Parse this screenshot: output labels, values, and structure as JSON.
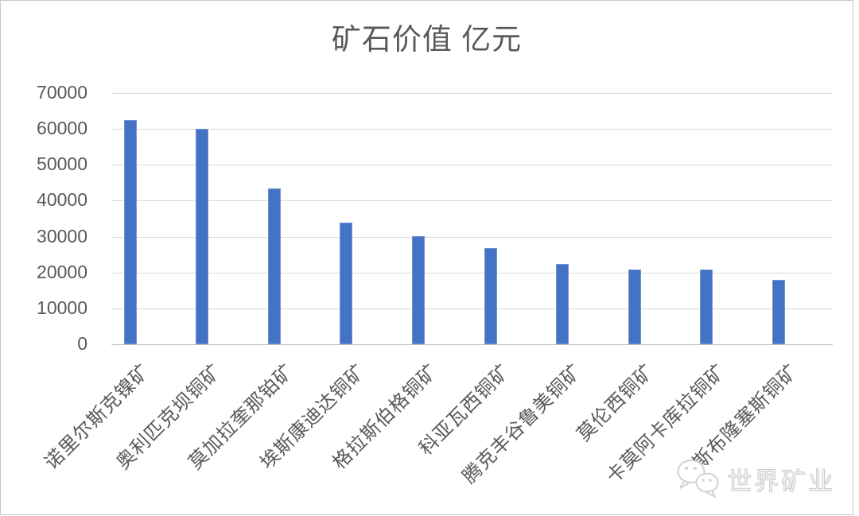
{
  "page": {
    "background": "#ffffff",
    "border_color": "#c9c9c9"
  },
  "chart_data": {
    "type": "bar",
    "title": "矿石价值 亿元",
    "categories": [
      "诺里尔斯克镍矿",
      "奥利匹克坝铜矿",
      "莫加拉奎那铂矿",
      "埃斯康迪达铜矿",
      "格拉斯伯格铜矿",
      "科亚瓦西铜矿",
      "腾克丰谷鲁美铜矿",
      "莫伦西铜矿",
      "卡莫阿卡库拉铜矿",
      "洛斯布隆塞斯铜矿"
    ],
    "values": [
      62500,
      60100,
      43400,
      33900,
      30100,
      26700,
      22400,
      20900,
      20800,
      18000
    ],
    "xlabel": "",
    "ylabel": "",
    "ylim": [
      0,
      70000
    ],
    "yticks": [
      0,
      10000,
      20000,
      30000,
      40000,
      50000,
      60000,
      70000
    ],
    "grid": true,
    "legend_position": "none",
    "bar_color": "#4472C4",
    "gridline_color": "#D9D9D9",
    "axis_line_color": "#C0C0C0",
    "text_color": "#595959",
    "x_label_rotation_deg": 45
  },
  "watermark": {
    "text": "世界矿业",
    "icon": "wechat-icon",
    "color": "#cdcdcd"
  }
}
